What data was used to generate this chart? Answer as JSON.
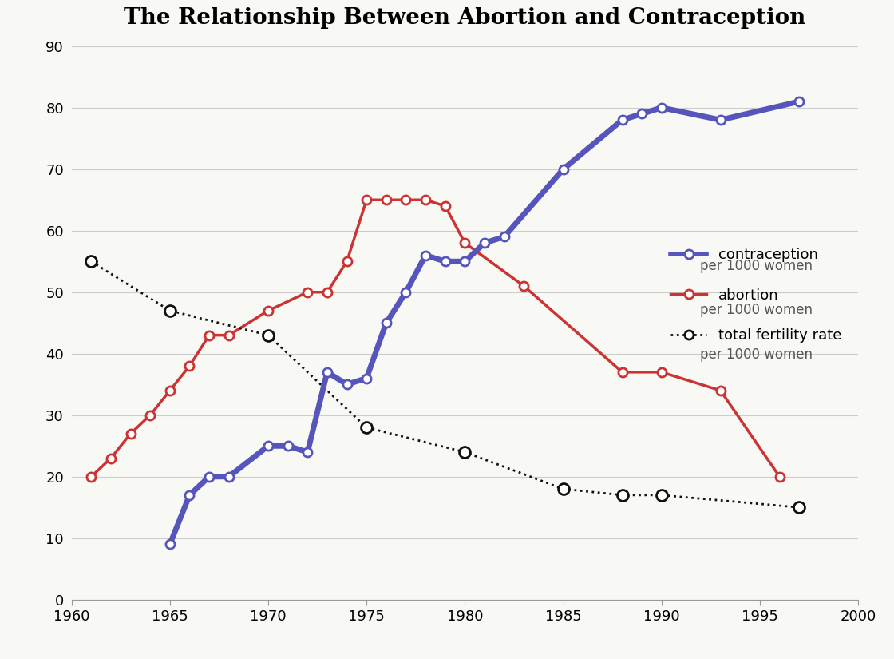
{
  "title": "The Relationship Between Abortion and Contraception",
  "xlim": [
    1960,
    2000
  ],
  "ylim": [
    0,
    90
  ],
  "yticks": [
    0,
    10,
    20,
    30,
    40,
    50,
    60,
    70,
    80,
    90
  ],
  "xticks": [
    1960,
    1965,
    1970,
    1975,
    1980,
    1985,
    1990,
    1995,
    2000
  ],
  "contraception": {
    "x": [
      1965,
      1966,
      1967,
      1968,
      1970,
      1971,
      1972,
      1973,
      1974,
      1975,
      1976,
      1977,
      1978,
      1979,
      1980,
      1981,
      1982,
      1985,
      1988,
      1989,
      1990,
      1993,
      1997
    ],
    "y": [
      9,
      17,
      20,
      20,
      25,
      25,
      24,
      37,
      35,
      36,
      45,
      50,
      56,
      55,
      55,
      58,
      59,
      70,
      78,
      79,
      80,
      78,
      81
    ],
    "color": "#5555bb",
    "linewidth": 5,
    "markersize": 8,
    "label_line1": "contraception",
    "label_line2": "per 1000 women"
  },
  "abortion": {
    "x": [
      1961,
      1962,
      1963,
      1964,
      1965,
      1966,
      1967,
      1968,
      1970,
      1972,
      1973,
      1974,
      1975,
      1976,
      1977,
      1978,
      1979,
      1980,
      1983,
      1988,
      1990,
      1993,
      1996
    ],
    "y": [
      20,
      23,
      27,
      30,
      34,
      38,
      43,
      43,
      47,
      50,
      50,
      55,
      65,
      65,
      65,
      65,
      64,
      58,
      51,
      37,
      37,
      34,
      20
    ],
    "color": "#cc3333",
    "linewidth": 2.5,
    "markersize": 8,
    "label_line1": "abortion",
    "label_line2": "per 1000 women"
  },
  "fertility": {
    "x": [
      1961,
      1965,
      1970,
      1975,
      1980,
      1985,
      1988,
      1990,
      1997
    ],
    "y": [
      55,
      47,
      43,
      28,
      24,
      18,
      17,
      17,
      15
    ],
    "color": "#111111",
    "linewidth": 2,
    "markersize": 10,
    "label_line1": "total fertility rate",
    "label_line2": "per 1000 women"
  },
  "grid_color": "#cccccc",
  "background_color": "#f8f8f5",
  "title_fontsize": 20,
  "tick_fontsize": 13,
  "legend_fontsize": 13
}
